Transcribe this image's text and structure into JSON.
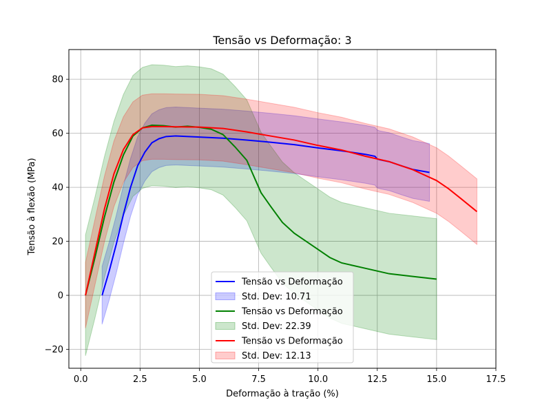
{
  "chart_data": {
    "type": "line",
    "title": "Tensão vs Deformação: 3",
    "xlabel": "Deformação à tração (%)",
    "ylabel": "Tensão à flexão (MPa)",
    "xlim": [
      -0.5,
      17.5
    ],
    "ylim": [
      -27,
      91
    ],
    "xticks": [
      0.0,
      2.5,
      5.0,
      7.5,
      10.0,
      12.5,
      15.0,
      17.5
    ],
    "xtick_labels": [
      "0.0",
      "2.5",
      "5.0",
      "7.5",
      "10.0",
      "12.5",
      "15.0",
      "17.5"
    ],
    "yticks": [
      -20,
      0,
      20,
      40,
      60,
      80
    ],
    "ytick_labels": [
      "−20",
      "0",
      "20",
      "40",
      "60",
      "80"
    ],
    "grid": true,
    "legend_position": "lower-center",
    "series": [
      {
        "name": "Tensão vs Deformação",
        "color": "#0000ff",
        "std_label": "Std. Dev: 10.71",
        "std": 10.71,
        "x": [
          0.9,
          1.2,
          1.5,
          1.8,
          2.1,
          2.4,
          2.7,
          3.0,
          3.3,
          3.6,
          4.0,
          5.0,
          6.0,
          7.0,
          8.0,
          9.0,
          10.0,
          11.0,
          12.0,
          12.4,
          12.5,
          12.6,
          13.0,
          13.5,
          14.0,
          14.7
        ],
        "y": [
          0,
          9,
          19,
          30,
          40,
          48,
          53,
          56.5,
          58,
          58.8,
          59,
          58.6,
          58.2,
          57.5,
          56.7,
          55.8,
          54.6,
          53.5,
          52.2,
          51.5,
          50.5,
          50.2,
          49.5,
          48,
          46.6,
          45.5
        ]
      },
      {
        "name": "Tensão vs Deformação",
        "color": "#008000",
        "std_label": "Std. Dev: 22.39",
        "std": 22.39,
        "x": [
          0.2,
          0.6,
          1.0,
          1.4,
          1.8,
          2.2,
          2.6,
          3.0,
          3.5,
          4.0,
          4.5,
          5.0,
          5.5,
          6.0,
          6.5,
          7.0,
          7.3,
          7.6,
          8.0,
          8.5,
          9.0,
          9.5,
          10.0,
          10.5,
          11.0,
          12.0,
          13.0,
          14.0,
          15.0
        ],
        "y": [
          0,
          14,
          29,
          42,
          52,
          59,
          62,
          63,
          62.8,
          62.3,
          62.6,
          62.2,
          61.5,
          59.5,
          55,
          50,
          44,
          38,
          33,
          27,
          23,
          20,
          17,
          14,
          12,
          10,
          8,
          7,
          6
        ]
      },
      {
        "name": "Tensão vs Deformação",
        "color": "#ff0000",
        "std_label": "Std. Dev: 12.13",
        "std": 12.13,
        "x": [
          0.2,
          0.6,
          1.0,
          1.4,
          1.8,
          2.2,
          2.6,
          3.0,
          3.5,
          4.0,
          5.0,
          6.0,
          7.0,
          8.0,
          9.0,
          10.0,
          11.0,
          12.0,
          13.0,
          14.0,
          15.0,
          15.5,
          16.0,
          16.7
        ],
        "y": [
          0,
          16,
          32,
          45,
          54,
          59.5,
          62,
          62.5,
          62.5,
          62.4,
          62.3,
          61.8,
          60.5,
          59,
          57.5,
          55.5,
          53.8,
          51.5,
          49.5,
          46.5,
          42.5,
          39.5,
          36,
          31
        ]
      }
    ]
  }
}
